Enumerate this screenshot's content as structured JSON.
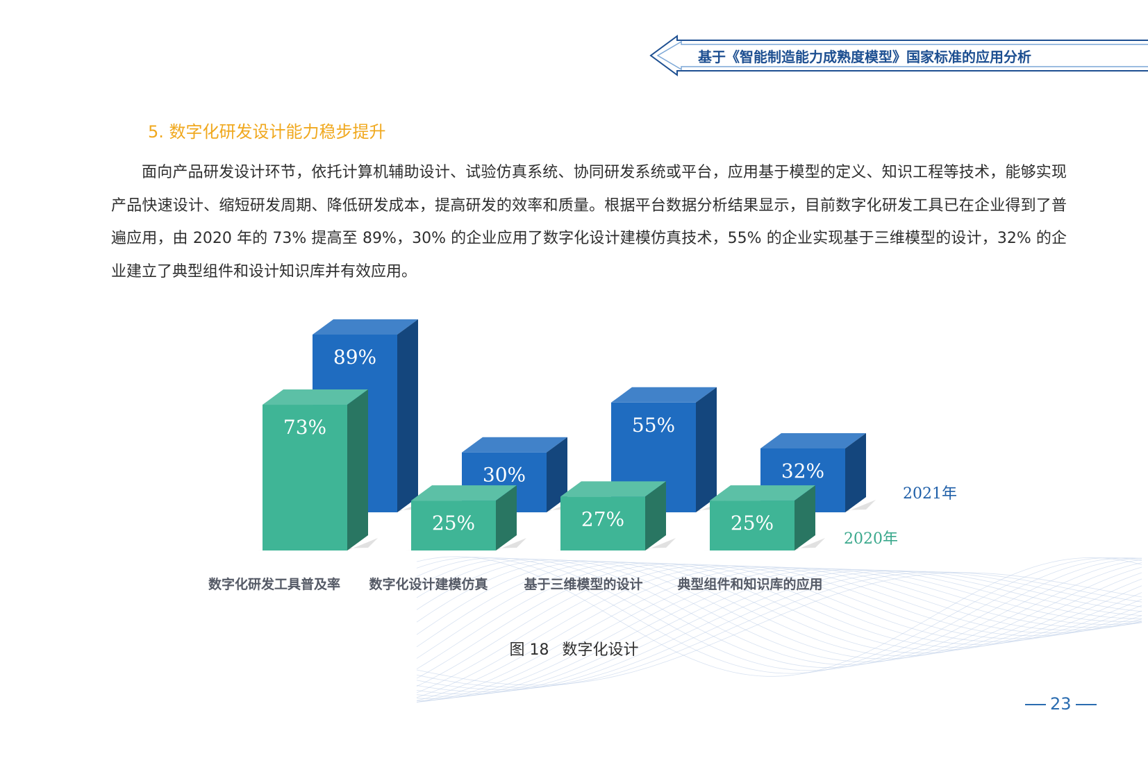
{
  "header": {
    "title": "基于《智能制造能力成熟度模型》国家标准的应用分析",
    "accent_color": "#1d4f91"
  },
  "section": {
    "heading": "5. 数字化研发设计能力稳步提升",
    "heading_color": "#f0a81e",
    "paragraph": "面向产品研发设计环节，依托计算机辅助设计、试验仿真系统、协同研发系统或平台，应用基于模型的定义、知识工程等技术，能够实现产品快速设计、缩短研发周期、降低研发成本，提高研发的效率和质量。根据平台数据分析结果显示，目前数字化研发工具已在企业得到了普遍应用，由 2020 年的 73% 提高至 89%，30% 的企业应用了数字化设计建模仿真技术，55% 的企业实现基于三维模型的设计，32% 的企业建立了典型组件和设计知识库并有效应用。"
  },
  "chart_data": {
    "type": "bar",
    "categories": [
      "数字化研发工具普及率",
      "数字化设计建模仿真",
      "基于三维模型的设计",
      "典型组件和知识库的应用"
    ],
    "series": [
      {
        "name": "2020年",
        "values": [
          73,
          25,
          27,
          25
        ],
        "labels": [
          "73%",
          "25%",
          "27%",
          "25%"
        ],
        "color": "#3fb596"
      },
      {
        "name": "2021年",
        "values": [
          89,
          30,
          55,
          32
        ],
        "labels": [
          "89%",
          "30%",
          "55%",
          "32%"
        ],
        "color": "#1f6cc0"
      }
    ],
    "unit": "%",
    "ylim": [
      0,
      100
    ]
  },
  "figure": {
    "number": "图 18",
    "title": "数字化设计"
  },
  "page": {
    "number": "23"
  }
}
